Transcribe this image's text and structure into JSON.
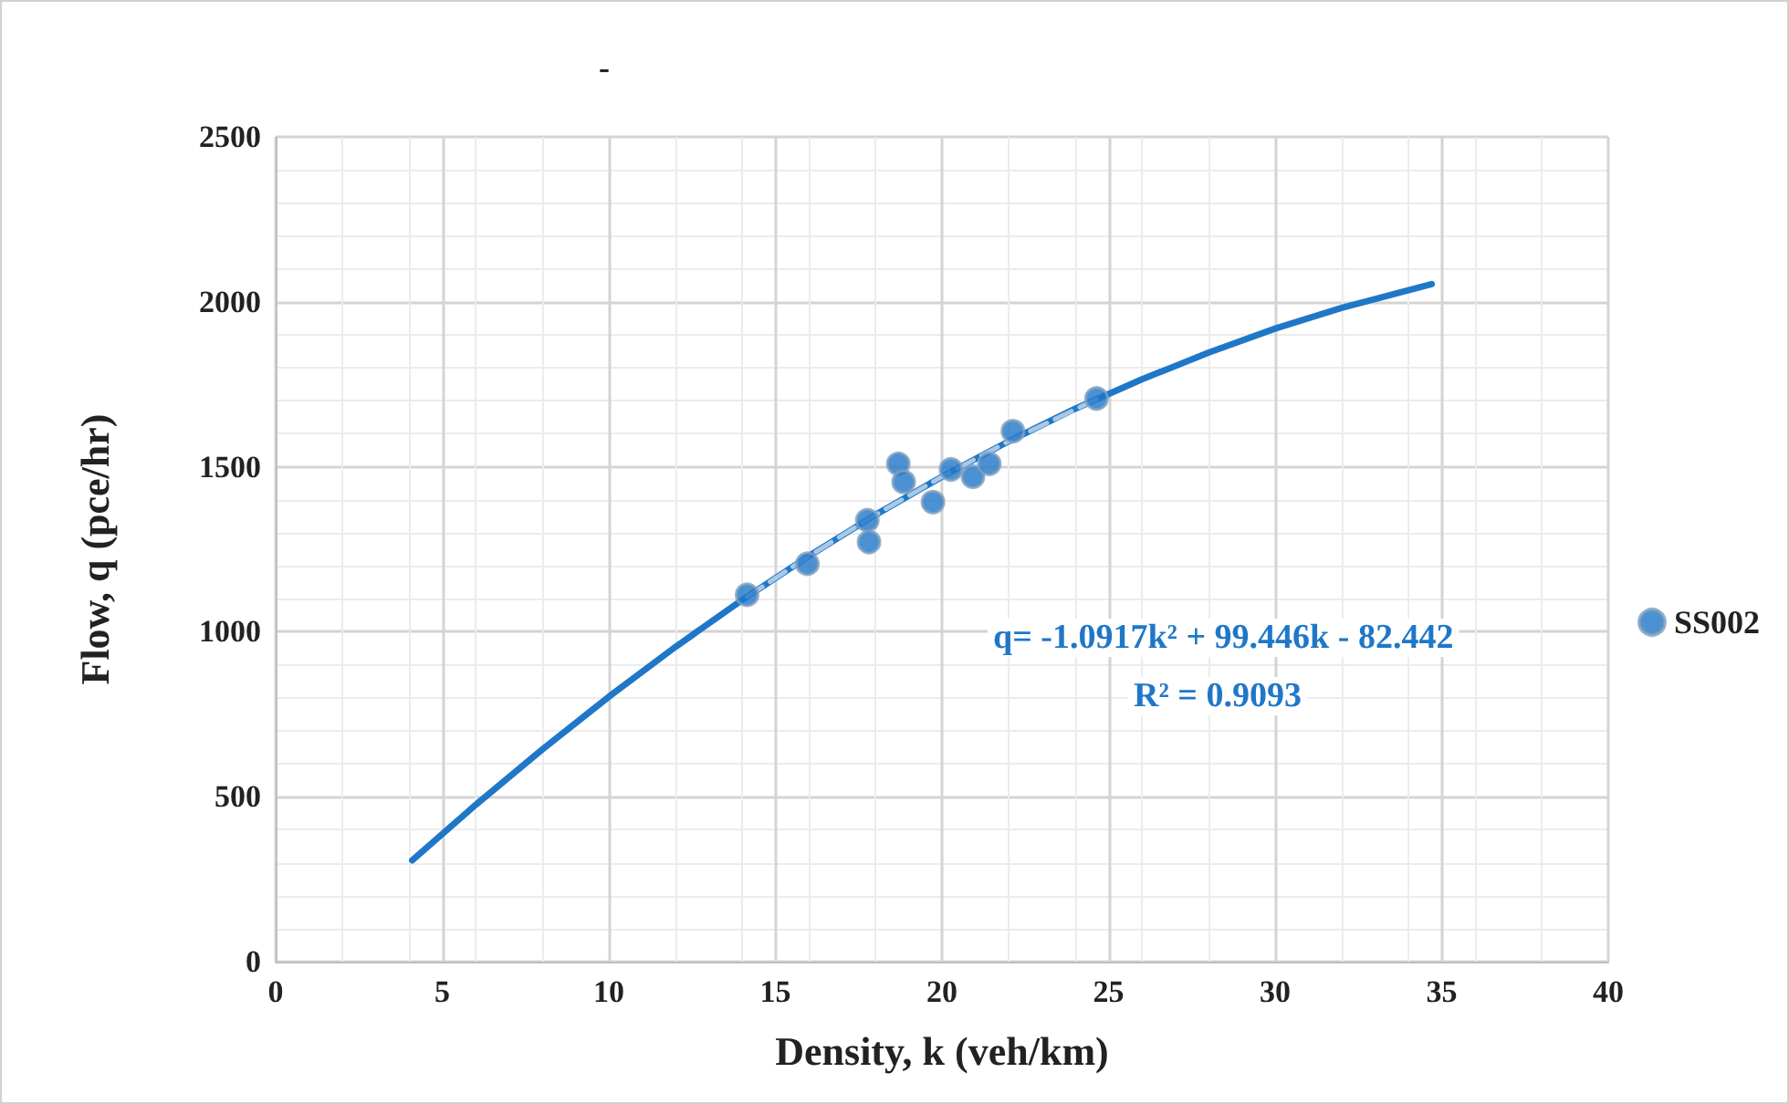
{
  "chart_data": {
    "type": "scatter",
    "title": "-",
    "xlabel": "Density, k (veh/km)",
    "ylabel": "Flow, q (pce/hr)",
    "series": [
      {
        "name": "SS002",
        "type": "scatter",
        "marker": "circle",
        "color": "#1f77c8",
        "x": [
          14.15,
          15.96,
          17.76,
          17.81,
          18.69,
          18.85,
          19.73,
          20.27,
          20.93,
          21.42,
          22.13,
          24.64
        ],
        "values": [
          1112,
          1206,
          1338,
          1272,
          1509,
          1454,
          1393,
          1492,
          1470,
          1509,
          1608,
          1707
        ]
      },
      {
        "type": "line",
        "marker": "none",
        "color": "#1f77c8",
        "x": [
          4.1,
          6,
          8,
          10,
          12,
          14,
          16,
          18,
          20,
          22,
          24,
          26,
          28,
          30,
          32,
          34.7
        ],
        "values": [
          307,
          475,
          643,
          803,
          954,
          1096,
          1229,
          1354,
          1470,
          1577,
          1676,
          1765,
          1846,
          1919,
          1982,
          2054
        ]
      },
      {
        "type": "line",
        "marker": "none",
        "color": "#a9c8e4",
        "line_style": "dashed",
        "x": [
          14.15,
          16,
          18,
          20,
          22,
          24.64
        ],
        "values": [
          1106,
          1229,
          1354,
          1470,
          1577,
          1705
        ]
      }
    ],
    "annotations": [
      "q= -1.0917k² + 99.446k - 82.442",
      "R² = 0.9093"
    ],
    "xlim": [
      0,
      40
    ],
    "xticks": [
      0,
      5,
      10,
      15,
      20,
      25,
      30,
      35,
      40
    ],
    "ylim": [
      0,
      2500
    ],
    "yticks": [
      0,
      500,
      1000,
      1500,
      2000,
      2500
    ],
    "grid": true,
    "legend": "right"
  }
}
